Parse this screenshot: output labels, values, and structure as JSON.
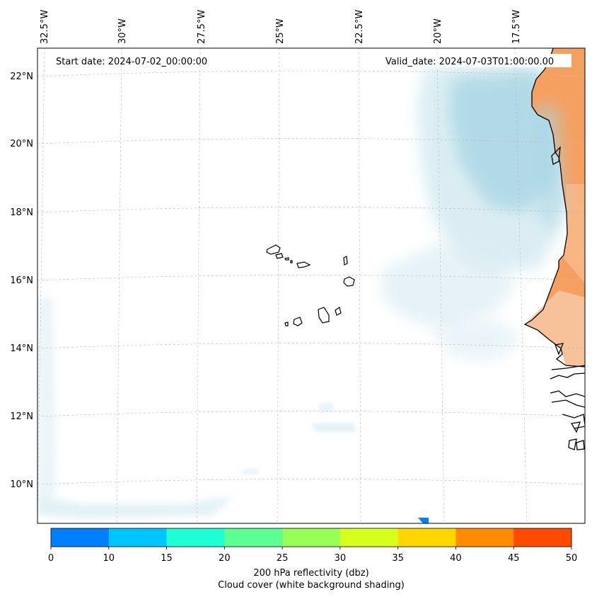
{
  "map": {
    "start_date_label": "Start date: 2024-07-02_00:00:00",
    "valid_date_label": "Valid_date: 2024-07-03T01:00:00.00",
    "longitude_labels": [
      "32.5°W",
      "30°W",
      "27.5°W",
      "25°W",
      "22.5°W",
      "20°W",
      "17.5°W"
    ],
    "latitude_labels": [
      "22°N",
      "20°N",
      "18°N",
      "16°N",
      "14°N",
      "12°N",
      "10°N"
    ],
    "land_color": "#f5a060",
    "cloud_color": "#a8d8e6",
    "ocean_color": "#ffffff"
  },
  "colorbar": {
    "ticks": [
      "0",
      "10",
      "15",
      "20",
      "25",
      "30",
      "35",
      "40",
      "45",
      "50"
    ],
    "colors": [
      "#0080ff",
      "#00c5ff",
      "#1effd6",
      "#5cff92",
      "#98ff58",
      "#d6ff1e",
      "#ffd600",
      "#ff8c00",
      "#ff4a00"
    ],
    "label_line1": "200 hPa reflectivity (dbz)",
    "label_line2": "Cloud cover (white background shading)"
  }
}
